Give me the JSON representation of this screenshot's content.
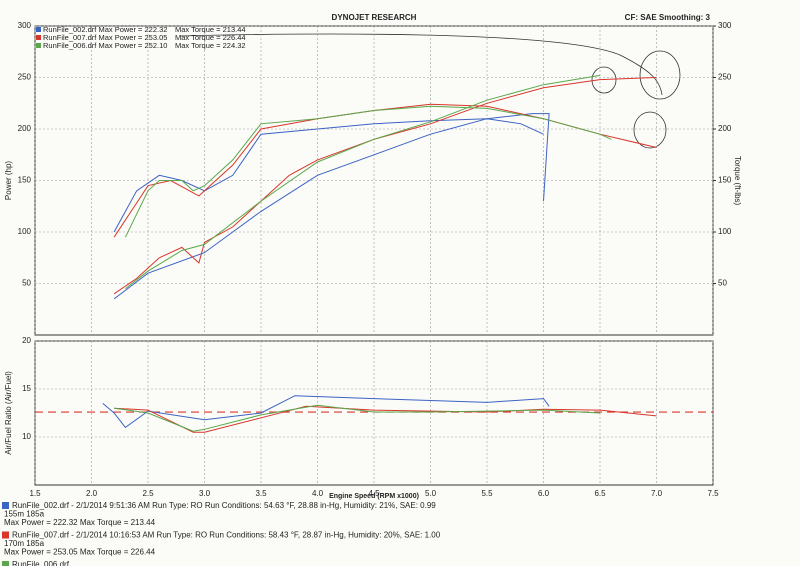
{
  "header": {
    "title": "DYNOJET RESEARCH",
    "settings": "CF: SAE  Smoothing: 3"
  },
  "chart_data": [
    {
      "type": "line",
      "ylabel": "Power (hp)",
      "y2label": "Torque (ft-lbs)",
      "xlim": [
        1.5,
        7.5
      ],
      "xticks": [
        1.5,
        2,
        2.5,
        3,
        3.5,
        4,
        4.5,
        5,
        5.5,
        6,
        6.5,
        7,
        7.5
      ],
      "ylim": [
        0,
        300
      ],
      "yticks": [
        50,
        100,
        150,
        200,
        250,
        300
      ],
      "y2lim": [
        0,
        300
      ],
      "y2ticks": [
        50,
        100,
        150,
        200,
        250,
        300
      ],
      "grid": true,
      "series": [
        {
          "name": "RunFile_002.drf Max Power = 222.32",
          "color": "#3b63c4",
          "x": [
            2.2,
            2.5,
            3.0,
            3.5,
            4.0,
            4.5,
            5.0,
            5.5,
            5.9,
            6.05,
            6.0
          ],
          "values": [
            35,
            60,
            80,
            120,
            155,
            175,
            195,
            210,
            215,
            215,
            130
          ]
        },
        {
          "name": "Max Torque = 213.44",
          "color": "#3b63c4",
          "axis": "y2",
          "x": [
            2.2,
            2.4,
            2.6,
            2.8,
            3.0,
            3.25,
            3.5,
            4.0,
            4.5,
            5.0,
            5.5,
            5.8,
            6.0
          ],
          "values": [
            100,
            140,
            155,
            150,
            140,
            155,
            195,
            200,
            205,
            208,
            210,
            205,
            195
          ]
        },
        {
          "name": "RunFile_007.drf Max Power = 253.05",
          "color": "#d9362b",
          "x": [
            2.2,
            2.4,
            2.6,
            2.8,
            2.95,
            3.0,
            3.25,
            3.5,
            3.75,
            4.0,
            4.5,
            5.0,
            5.5,
            6.0,
            6.5,
            7.0
          ],
          "values": [
            40,
            55,
            75,
            85,
            70,
            90,
            105,
            130,
            155,
            170,
            190,
            205,
            225,
            240,
            248,
            250
          ]
        },
        {
          "name": "Max Torque = 226.44",
          "color": "#d9362b",
          "axis": "y2",
          "x": [
            2.2,
            2.5,
            2.7,
            2.95,
            3.0,
            3.25,
            3.5,
            4.0,
            4.5,
            5.0,
            5.5,
            6.0,
            6.5,
            7.0
          ],
          "values": [
            95,
            145,
            150,
            135,
            140,
            165,
            200,
            210,
            218,
            224,
            222,
            210,
            195,
            182
          ]
        },
        {
          "name": "RunFile_006.drf Max Power = 252.10",
          "color": "#5aa84a",
          "x": [
            2.3,
            2.5,
            2.8,
            3.0,
            3.5,
            4.0,
            4.5,
            5.0,
            5.5,
            6.0,
            6.5
          ],
          "values": [
            45,
            62,
            82,
            88,
            130,
            168,
            190,
            207,
            228,
            243,
            252
          ]
        },
        {
          "name": "Max Torque = 224.32",
          "color": "#5aa84a",
          "axis": "y2",
          "x": [
            2.3,
            2.5,
            2.6,
            2.8,
            2.9,
            3.0,
            3.25,
            3.5,
            4.0,
            4.5,
            5.0,
            5.5,
            6.0,
            6.5,
            6.6
          ],
          "values": [
            95,
            140,
            150,
            150,
            140,
            145,
            170,
            205,
            210,
            218,
            222,
            220,
            210,
            195,
            190
          ]
        }
      ]
    },
    {
      "type": "line",
      "ylabel": "Air/Fuel Ratio (Air/Fuel)",
      "xlabel": "Engine Speed (RPM x1000)",
      "xlim": [
        1.5,
        7.5
      ],
      "xticks": [
        1.5,
        {
          "value": 2,
          "label": "2.0"
        },
        2.5,
        {
          "value": 3,
          "label": "3.0"
        },
        3.5,
        {
          "value": 4,
          "label": "4.0"
        },
        4.5,
        {
          "value": 5,
          "label": "5.0"
        },
        5.5,
        {
          "value": 6,
          "label": "6.0"
        },
        6.5,
        {
          "value": 7,
          "label": "7.0"
        },
        7.5
      ],
      "ylim": [
        5,
        20
      ],
      "yticks": [
        10,
        15,
        20
      ],
      "grid": true,
      "reference_line": {
        "value": 12.6,
        "color": "#d9362b"
      },
      "series": [
        {
          "color": "#3b63c4",
          "x": [
            2.1,
            2.2,
            2.3,
            2.5,
            3.0,
            3.5,
            3.8,
            4.5,
            5.0,
            5.5,
            6.0,
            6.05
          ],
          "values": [
            13.5,
            12.5,
            11,
            12.7,
            11.8,
            12.5,
            14.3,
            14.0,
            13.8,
            13.6,
            14.0,
            13.2
          ]
        },
        {
          "color": "#d9362b",
          "x": [
            2.2,
            2.5,
            2.9,
            3.0,
            3.5,
            3.9,
            4.5,
            5.0,
            5.5,
            6.0,
            6.5,
            7.0
          ],
          "values": [
            13,
            12.8,
            10.5,
            10.5,
            12,
            13.2,
            12.8,
            12.7,
            12.6,
            12.9,
            12.8,
            12.2
          ]
        },
        {
          "color": "#5aa84a",
          "x": [
            2.2,
            2.5,
            2.9,
            3.0,
            3.5,
            4.0,
            4.5,
            5.0,
            5.5,
            6.0,
            6.5
          ],
          "values": [
            13.0,
            12.5,
            10.6,
            10.8,
            12.3,
            13.3,
            12.6,
            12.6,
            12.7,
            12.8,
            12.5
          ]
        }
      ]
    }
  ],
  "notes": [
    {
      "color": "#3b63c4",
      "lines": [
        "RunFile_002.drf - 2/1/2014 9:51:36 AM  Run Type: RO  Run Conditions: 54.63 °F, 28.88 in-Hg,  Humidity:  21%, SAE: 0.99",
        "155m 185a",
        "Max Power = 222.32  Max Torque = 213.44"
      ]
    },
    {
      "color": "#d9362b",
      "lines": [
        "RunFile_007.drf - 2/1/2014 10:16:53 AM  Run Type: RO  Run Conditions: 58.43 °F, 28.87 in-Hg,  Humidity:  20%, SAE: 1.00",
        "170m 185a",
        "Max Power = 253.05  Max Torque = 226.44"
      ]
    },
    {
      "color": "#5aa84a",
      "lines": [
        "RunFile_006.drf"
      ]
    }
  ]
}
